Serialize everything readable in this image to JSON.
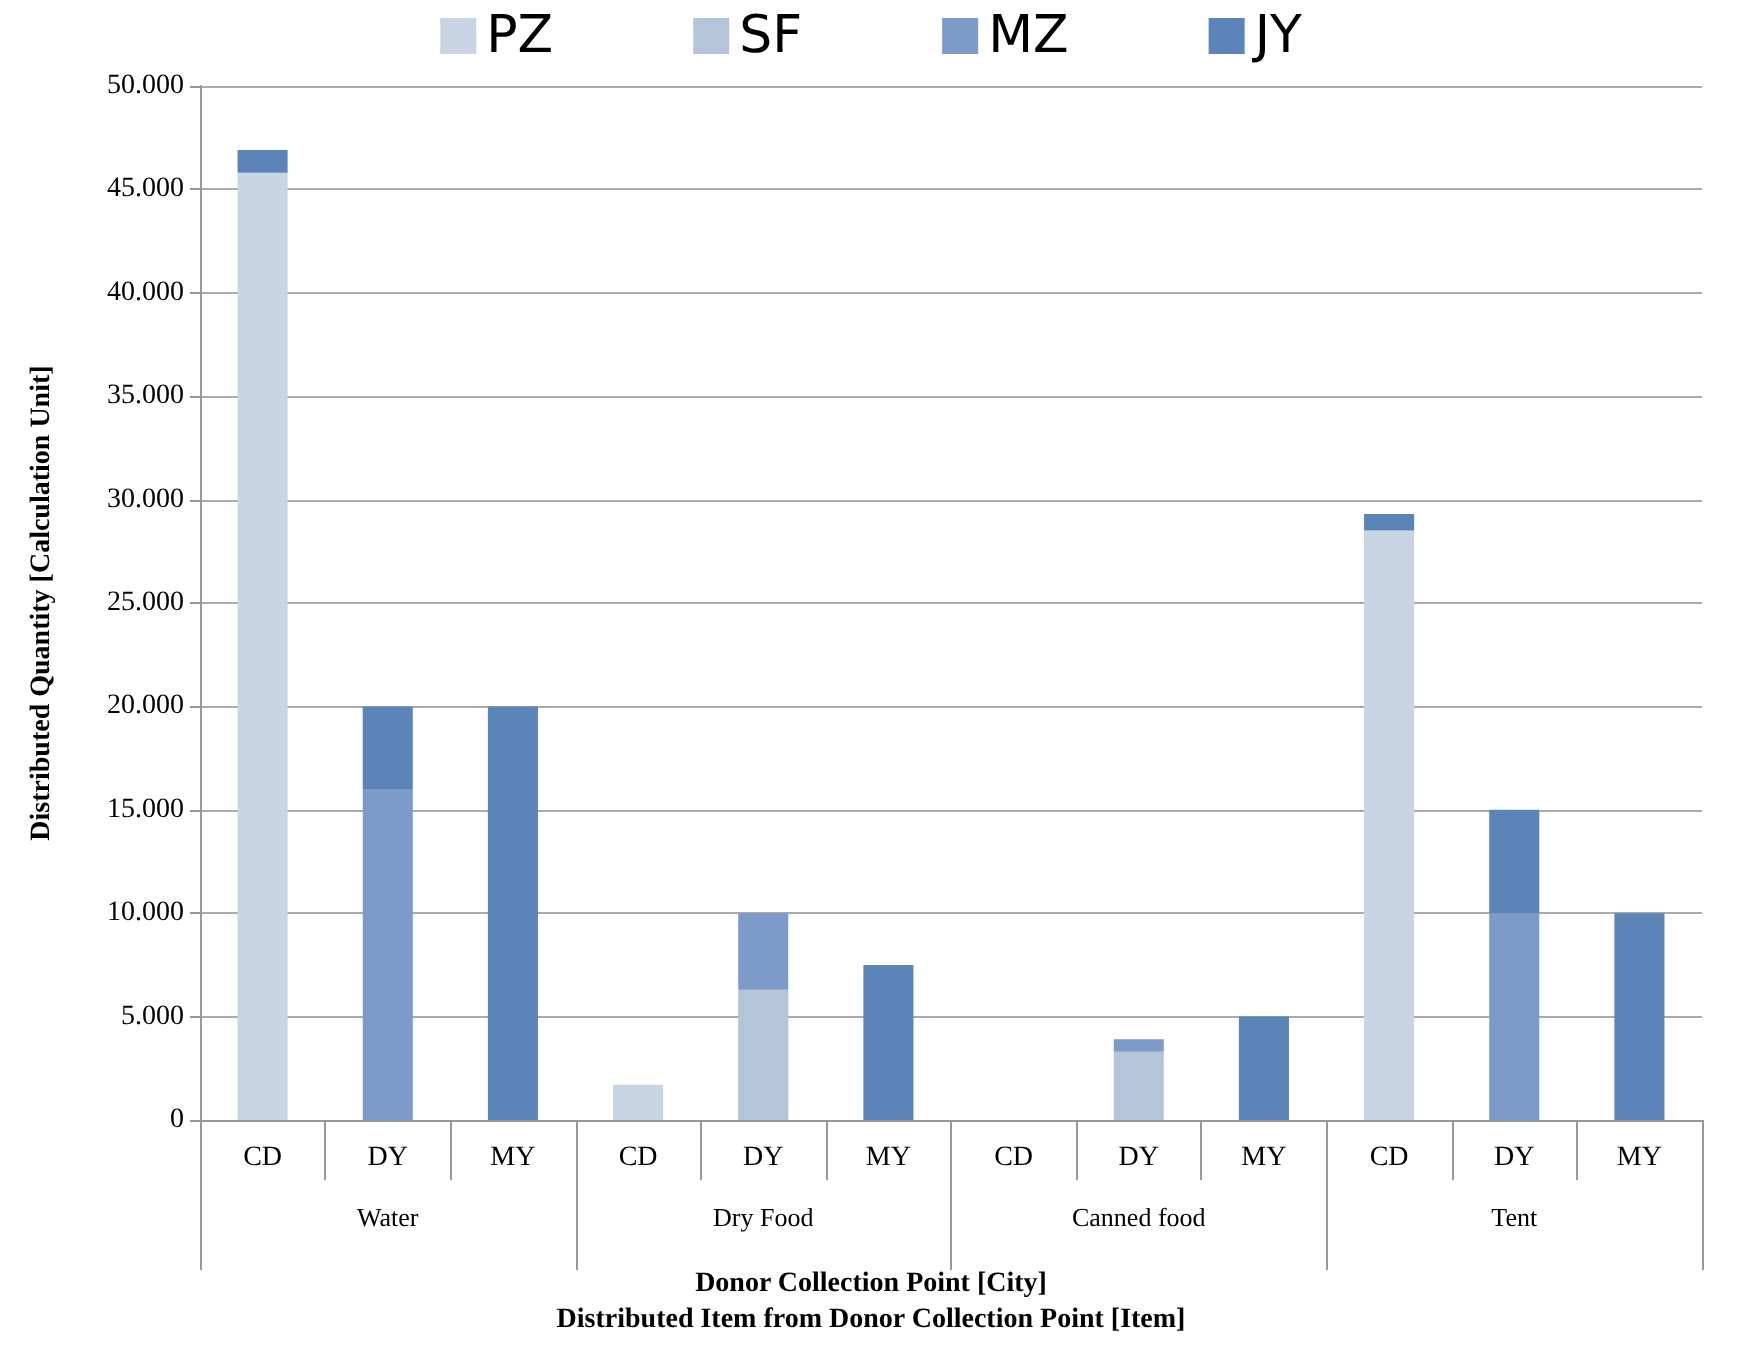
{
  "chart_data": {
    "type": "bar",
    "stacked": true,
    "ylabel": "Distributed Quantity [Calculation Unit]",
    "xlabel": "Donor Collection Point [City]\nDistributed Item from Donor Collection Point [Item]",
    "categories": [
      "CD",
      "DY",
      "MY",
      "CD",
      "DY",
      "MY",
      "CD",
      "DY",
      "MY",
      "CD",
      "DY",
      "MY"
    ],
    "annotations": [
      "Water",
      "Dry Food",
      "Canned food",
      "Tent"
    ],
    "series": [
      {
        "name": "PZ",
        "color": "#c9d5e4",
        "values": [
          45800,
          0,
          0,
          1700,
          0,
          0,
          0,
          0,
          0,
          28500,
          0,
          0
        ]
      },
      {
        "name": "SF",
        "color": "#b4c4d9",
        "values": [
          0,
          0,
          0,
          0,
          6300,
          0,
          0,
          3300,
          0,
          0,
          0,
          0
        ]
      },
      {
        "name": "MZ",
        "color": "#7d9bc9",
        "values": [
          0,
          16000,
          0,
          0,
          3700,
          0,
          0,
          600,
          0,
          0,
          10000,
          0
        ]
      },
      {
        "name": "JY",
        "color": "#5b84b8",
        "values": [
          1100,
          4000,
          20000,
          0,
          0,
          7500,
          0,
          0,
          5000,
          800,
          5000,
          10000
        ]
      }
    ],
    "ylim": [
      0,
      50000
    ],
    "yticks": [
      0,
      {
        "value": 5000,
        "label": "5.000"
      },
      {
        "value": 10000,
        "label": "10.000"
      },
      {
        "value": 15000,
        "label": "15.000"
      },
      {
        "value": 20000,
        "label": "20.000"
      },
      {
        "value": 25000,
        "label": "25.000"
      },
      {
        "value": 30000,
        "label": "30.000"
      },
      {
        "value": 35000,
        "label": "35.000"
      },
      {
        "value": 40000,
        "label": "40.000"
      },
      {
        "value": 45000,
        "label": "45.000"
      },
      {
        "value": 50000,
        "label": "50.000"
      }
    ],
    "grid": "y",
    "legend": "top"
  }
}
